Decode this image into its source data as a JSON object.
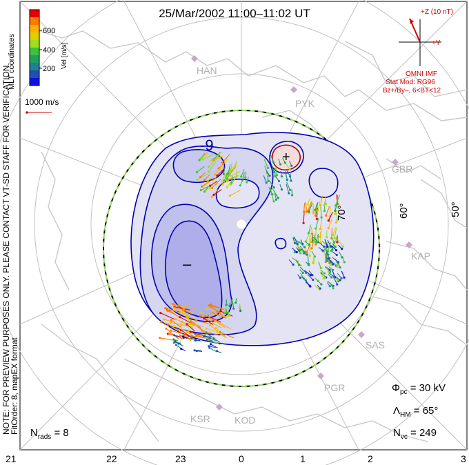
{
  "title": "25/Mar/2002 11:00–11:02 UT",
  "hour_labels": [
    "21",
    "22",
    "23",
    "0",
    "1",
    "2",
    "3"
  ],
  "lat_labels": [
    "70°",
    "60°",
    "50°"
  ],
  "sites": [
    "HAN",
    "PYK",
    "GBR",
    "KAP",
    "SAS",
    "PGR",
    "KSR",
    "KOD"
  ],
  "colorbar": {
    "label": "Vel [m/s]",
    "ticks": [
      "600",
      "400",
      "200"
    ],
    "colors": [
      "#e60000",
      "#ff7a00",
      "#ffb000",
      "#e0d000",
      "#a0dd20",
      "#40c040",
      "#20a060",
      "#208090",
      "#2050b0",
      "#1010e0"
    ]
  },
  "coords_label": "MLT coordinates",
  "vector_scale": "1000 m/s",
  "contour_labels": {
    "min_value": "-9",
    "min_sign": "–",
    "max_sign": "+"
  },
  "imf": {
    "z_label": "+Z (10 nT)",
    "y_label": "+Y",
    "source": "OMNI IMF",
    "model": "Stat Mod: RG96",
    "condition": "Bz+/By–, 6<BT<12"
  },
  "notes": {
    "line1": "NOTE: FOR PREVIEW PURPOSES ONLY. PLEASE CONTACT VT-SD STAFF FOR VERIFICATION.",
    "line2": "FitOrder: 8, mapEX format"
  },
  "stats": {
    "phi_pc": "30 kV",
    "lambda_hm": "65°",
    "n_vc": "249",
    "n_rads": "8"
  },
  "colors": {
    "contour": "#0000b0",
    "fill_neg_light": "#e4e4f4",
    "fill_neg_mid": "#c8c8ee",
    "fill_neg_dark": "#aaaaee",
    "fill_pos": "#f4dcdc",
    "positive_contour": "#b00000",
    "grid": "#bdbdbd",
    "coast": "#c8c8c8",
    "boundary_green": "#88d848"
  }
}
